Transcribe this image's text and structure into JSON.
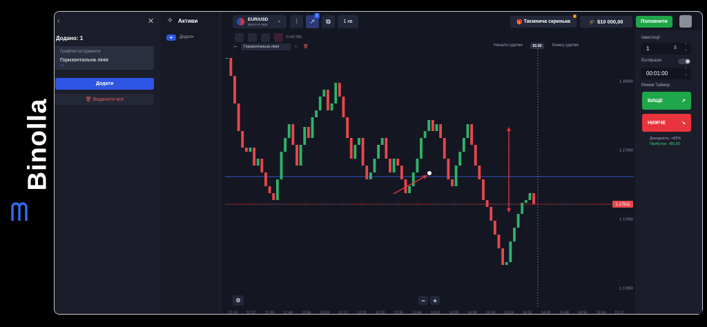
{
  "brand": "Binolla",
  "left_panel": {
    "added": "Додано: 1",
    "tool_category": "Графічні інструменти",
    "tool_name": "Горизонтальна лінія",
    "add_button": "Додати",
    "delete_all": "Видалити все"
  },
  "assets": {
    "title": "Активи",
    "add": "Додати"
  },
  "top_bar": {
    "asset": "EUR/USD",
    "asset_type": "Валютні пари",
    "badge": "1",
    "timeframe": "1 хв",
    "mystery_box": "Таємнича скринька",
    "balance": "$10 000,00",
    "deposit": "Поповнити"
  },
  "chart_toolbar": {
    "timezone": "С+02:00)",
    "tool_label": "Горизонтальна лінія",
    "trade_start": "Начало сделки",
    "timer": "01:00",
    "trade_end": "Конец сделки"
  },
  "trade_panel": {
    "investment_label": "Інвестиції",
    "investment": "1",
    "currency": "$",
    "expiration_label": "Експірація",
    "expiration": "00:01:00",
    "mode": "Режим Таймер",
    "up": "ВИЩЕ",
    "down": "НИЖЧЕ",
    "yield": "Доходність: +82%",
    "profit": "Прибуток: +$0,82"
  },
  "chart_data": {
    "type": "candlestick",
    "up_color": "#2fb36a",
    "down_color": "#e8474c",
    "grid": true,
    "close": [
      1.18017,
      1.18004,
      1.17984,
      1.17964,
      1.17952,
      1.17949,
      1.17952,
      1.17939,
      1.17944,
      1.17934,
      1.17924,
      1.17919,
      1.17914,
      1.17929,
      1.17949,
      1.17959,
      1.17969,
      1.17954,
      1.17939,
      1.17954,
      1.17967,
      1.17959,
      1.17974,
      1.17979,
      1.17989,
      1.17994,
      1.17979,
      1.17984,
      1.17999,
      1.17989,
      1.17974,
      1.17959,
      1.17944,
      1.17954,
      1.17959,
      1.17939,
      1.17929,
      1.17934,
      1.17944,
      1.17954,
      1.17959,
      1.17944,
      1.17934,
      1.17944,
      1.17939,
      1.17929,
      1.17919,
      1.17924,
      1.17934,
      1.17944,
      1.17959,
      1.17964,
      1.17972,
      1.17964,
      1.17969,
      1.17959,
      1.17944,
      1.17929,
      1.17924,
      1.17939,
      1.17949,
      1.17959,
      1.17969,
      1.17954,
      1.17939,
      1.17929,
      1.17914,
      1.17909,
      1.17899,
      1.17889,
      1.17879,
      1.17867,
      1.17869,
      1.17884,
      1.17894,
      1.17904,
      1.17912,
      1.17914,
      1.17919,
      1.17911
    ],
    "ylim": [
      1.17836,
      1.18036
    ],
    "yticks": [
      {
        "value": 1.18,
        "label": "1.18000"
      },
      {
        "value": 1.1795,
        "label": "1.17950"
      },
      {
        "value": 1.179,
        "label": "1.17900"
      },
      {
        "value": 1.1785,
        "label": "1.17850"
      }
    ],
    "xticks": [
      "12:24",
      "12:32",
      "12:40",
      "12:48",
      "12:56",
      "13:04",
      "13:12",
      "13:20",
      "13:28",
      "13:36",
      "13:44",
      "13:52",
      "14:00",
      "14:08",
      "14:16",
      "14:24",
      "14:32",
      "14:40",
      "14:48",
      "14:56",
      "15:04",
      "15:12"
    ],
    "current_price": 1.17911,
    "current_color": "#e8474c",
    "horizontal_line": 1.17931,
    "line_color": "#2f55c9"
  }
}
